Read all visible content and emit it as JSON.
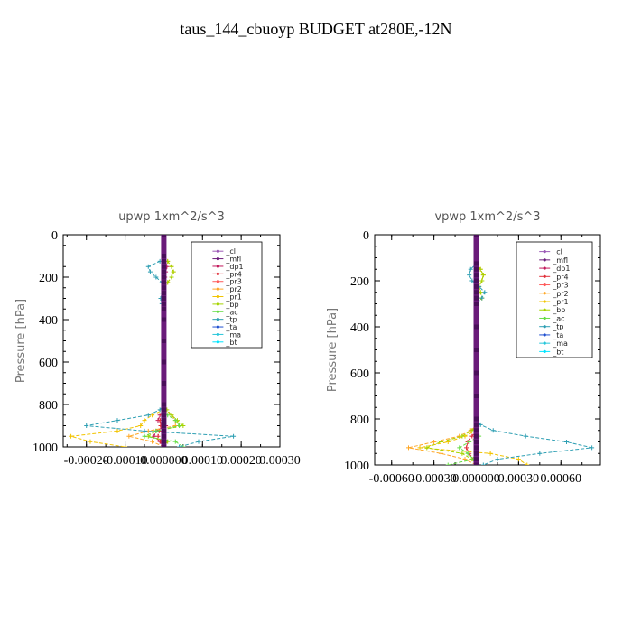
{
  "title": "taus_144_cbuoyp  BUDGET at280E,-12N",
  "legend_entries": [
    {
      "label": "_cl",
      "color": "#9b59b6"
    },
    {
      "label": "_mfl",
      "color": "#6a1b7a"
    },
    {
      "label": "_dp1",
      "color": "#c2185b"
    },
    {
      "label": "_pr4",
      "color": "#e0303a"
    },
    {
      "label": "_pr3",
      "color": "#ff5a5a"
    },
    {
      "label": "_pr2",
      "color": "#ffa726"
    },
    {
      "label": "_pr1",
      "color": "#f2c400"
    },
    {
      "label": "_bp",
      "color": "#a6d400"
    },
    {
      "label": "_ac",
      "color": "#66dd44"
    },
    {
      "label": "_tp",
      "color": "#2e9fb3"
    },
    {
      "label": "_ta",
      "color": "#1f4fd0"
    },
    {
      "label": "_ma",
      "color": "#26c6da"
    },
    {
      "label": "_bt",
      "color": "#00e5ff"
    }
  ],
  "chart_data": [
    {
      "type": "line",
      "title": "upwp   1xm^2/s^3",
      "ylabel": "Pressure [hPa]",
      "xlim": [
        -0.00026,
        0.0003
      ],
      "ylim": [
        1000,
        0
      ],
      "x_tick_labels": [
        "-0.00020",
        "-0.00010",
        "0.000000",
        "0.00010",
        "0.00020",
        "0.00030"
      ],
      "x_ticks": [
        -0.0002,
        -0.0001,
        0,
        0.0001,
        0.0002,
        0.0003
      ],
      "y_ticks": [
        0,
        200,
        400,
        600,
        800,
        1000
      ],
      "y": [
        0,
        100,
        125,
        150,
        175,
        200,
        225,
        250,
        275,
        300,
        325,
        350,
        400,
        500,
        600,
        700,
        800,
        825,
        850,
        875,
        900,
        925,
        950,
        975,
        1000
      ],
      "series": [
        {
          "name": "_cl",
          "x": [
            0,
            0,
            0,
            0,
            0,
            0,
            0,
            0,
            0,
            0,
            0,
            0,
            0,
            0,
            0,
            0,
            0,
            0,
            0,
            0,
            0,
            0,
            0,
            0,
            0
          ]
        },
        {
          "name": "_mfl",
          "x": [
            0,
            0,
            0,
            0,
            0,
            0,
            0,
            0,
            0,
            0,
            0,
            0,
            0,
            0,
            0,
            0,
            0,
            0,
            0,
            0,
            0,
            0,
            0,
            0,
            0
          ]
        },
        {
          "name": "_dp1",
          "x": [
            0,
            0,
            5e-06,
            8e-06,
            5e-06,
            3e-06,
            0,
            0,
            0,
            0,
            0,
            0,
            0,
            0,
            0,
            0,
            0,
            0,
            -1e-05,
            -1.5e-05,
            5e-06,
            -2e-05,
            -2.5e-05,
            -1e-05,
            0
          ]
        },
        {
          "name": "_pr4",
          "x": [
            0,
            0,
            0,
            0,
            0,
            0,
            0,
            0,
            0,
            0,
            0,
            0,
            0,
            0,
            0,
            0,
            0,
            0,
            -5e-06,
            -1e-05,
            -8e-06,
            -1.2e-05,
            -1.5e-05,
            -8e-06,
            0
          ]
        },
        {
          "name": "_pr2",
          "x": [
            0,
            0,
            1e-05,
            2e-05,
            2.5e-05,
            2e-05,
            1e-05,
            0,
            0,
            0,
            0,
            0,
            0,
            0,
            0,
            0,
            0,
            5e-06,
            2e-05,
            3e-05,
            3e-05,
            -4e-05,
            -9e-05,
            -3e-05,
            0
          ]
        },
        {
          "name": "_pr1",
          "x": [
            0,
            0,
            0,
            0,
            0,
            0,
            0,
            0,
            0,
            0,
            0,
            0,
            0,
            0,
            0,
            0,
            0,
            0,
            -3e-05,
            -5e-05,
            -6e-05,
            -0.00012,
            -0.00024,
            -0.00019,
            -0.0001
          ]
        },
        {
          "name": "_bp",
          "x": [
            0,
            0,
            1e-05,
            2e-05,
            2.5e-05,
            2e-05,
            1e-05,
            0,
            0,
            0,
            0,
            0,
            0,
            0,
            0,
            0,
            0,
            8e-06,
            2e-05,
            3.5e-05,
            5e-05,
            -2e-05,
            -4e-05,
            1e-05,
            0
          ]
        },
        {
          "name": "_ac",
          "x": [
            0,
            0,
            0,
            0,
            0,
            0,
            0,
            0,
            0,
            0,
            0,
            0,
            0,
            0,
            0,
            0,
            0,
            0,
            1e-05,
            3e-05,
            4e-05,
            -2e-05,
            -5e-05,
            3e-05,
            5e-05
          ]
        },
        {
          "name": "_tp",
          "x": [
            0,
            0,
            -1e-05,
            -4e-05,
            -3.5e-05,
            -2e-05,
            -5e-06,
            0,
            -5e-06,
            -8e-06,
            -5e-06,
            0,
            0,
            0,
            0,
            0,
            0,
            -1e-05,
            -4e-05,
            -0.00012,
            -0.0002,
            -5e-05,
            0.00018,
            9e-05,
            4e-05
          ]
        }
      ]
    },
    {
      "type": "line",
      "title": "vpwp   1xm^2/s^3",
      "ylabel": "Pressure [hPa]",
      "xlim": [
        -0.00072,
        0.00088
      ],
      "ylim": [
        1000,
        0
      ],
      "x_tick_labels": [
        "-0.00060",
        "-0.00030",
        "0.000000",
        "0.00030",
        "0.00060"
      ],
      "x_ticks": [
        -0.0006,
        -0.0003,
        0,
        0.0003,
        0.0006
      ],
      "y_ticks": [
        0,
        200,
        400,
        600,
        800,
        1000
      ],
      "y": [
        0,
        125,
        150,
        175,
        200,
        225,
        250,
        275,
        300,
        400,
        500,
        600,
        700,
        800,
        825,
        850,
        875,
        900,
        925,
        950,
        975,
        1000
      ],
      "series": [
        {
          "name": "_cl",
          "x": [
            0,
            0,
            0,
            0,
            0,
            0,
            0,
            0,
            0,
            0,
            0,
            0,
            0,
            0,
            0,
            0,
            0,
            0,
            0,
            0,
            0,
            0
          ]
        },
        {
          "name": "_mfl",
          "x": [
            0,
            0,
            0,
            0,
            0,
            0,
            0,
            0,
            0,
            0,
            0,
            0,
            0,
            0,
            0,
            0,
            0,
            0,
            0,
            0,
            0,
            0
          ]
        },
        {
          "name": "_pr4",
          "x": [
            0,
            0,
            0,
            0,
            0,
            0,
            0,
            0,
            0,
            0,
            0,
            0,
            0,
            0,
            0,
            0,
            -3e-05,
            -6e-05,
            -7e-05,
            -5e-05,
            -2e-05,
            0
          ]
        },
        {
          "name": "_pr2",
          "x": [
            0,
            0,
            3e-05,
            5e-05,
            4e-05,
            2e-05,
            3e-05,
            4e-05,
            0,
            0,
            0,
            0,
            0,
            0,
            1e-05,
            -4e-05,
            -0.00012,
            -0.0003,
            -0.00048,
            -0.00025,
            -8e-05,
            0
          ]
        },
        {
          "name": "_pr1",
          "x": [
            0,
            0,
            0,
            0,
            0,
            0,
            0,
            0,
            0,
            0,
            0,
            0,
            0,
            0,
            0,
            0,
            -8e-05,
            -0.0002,
            -0.0004,
            0.0001,
            0.0003,
            0.00036
          ]
        },
        {
          "name": "_bp",
          "x": [
            0,
            0,
            3e-05,
            5e-05,
            4e-05,
            2e-05,
            3e-05,
            4e-05,
            0,
            0,
            0,
            0,
            0,
            0,
            1e-05,
            -3e-05,
            -0.0001,
            -0.00025,
            -0.00035,
            -0.0001,
            -3e-05,
            0
          ]
        },
        {
          "name": "_tp",
          "x": [
            0,
            0,
            -4e-05,
            -5e-05,
            -3e-05,
            2e-05,
            6e-05,
            4e-05,
            0,
            0,
            0,
            0,
            0,
            0,
            3e-05,
            0.00012,
            0.00035,
            0.00064,
            0.00082,
            0.00045,
            0.00015,
            5e-05
          ]
        },
        {
          "name": "_ac",
          "x": [
            0,
            0,
            0,
            0,
            0,
            0,
            0,
            0,
            0,
            0,
            0,
            0,
            0,
            0,
            0,
            0,
            2e-05,
            -5e-05,
            -0.00012,
            -6e-05,
            -2e-05,
            -0.0002
          ]
        }
      ]
    }
  ]
}
